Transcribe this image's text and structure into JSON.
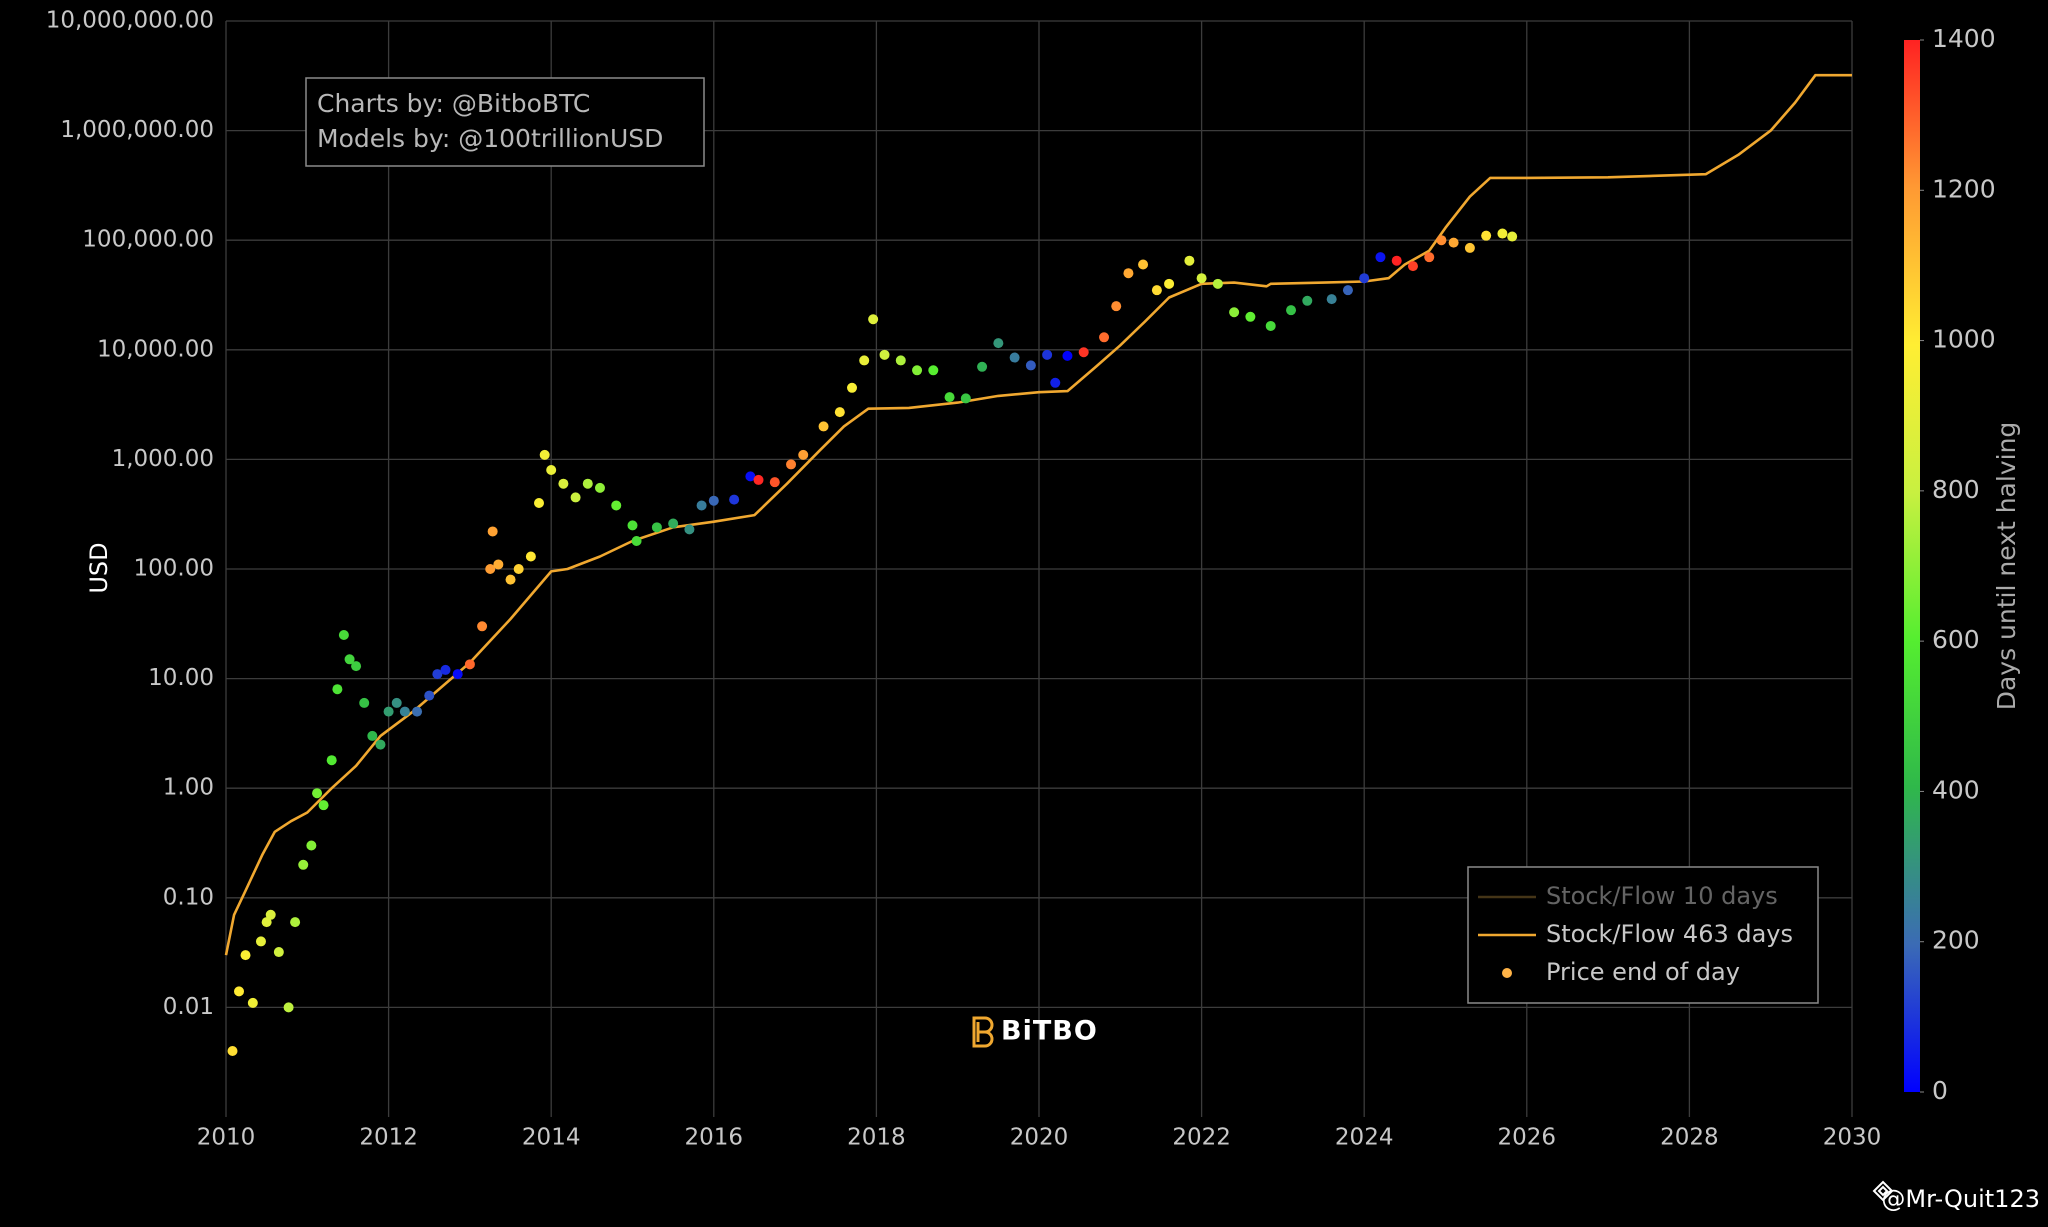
{
  "chart_data": {
    "type": "line",
    "y_label": "USD",
    "annotation": [
      "Charts by: @BitboBTC",
      "Models by: @100trillionUSD"
    ],
    "logo": "BiTBO",
    "watermark": "@Mr-Quit123",
    "xlim": [
      2010,
      2030
    ],
    "xticks": [
      2010,
      2012,
      2014,
      2016,
      2018,
      2020,
      2022,
      2024,
      2026,
      2028,
      2030
    ],
    "log_y": true,
    "ylim": [
      0.001,
      10000000
    ],
    "yticks": [
      0.01,
      {
        "value": 0.1,
        "label": "0.10"
      },
      {
        "value": 1,
        "label": "1.00"
      },
      {
        "value": 10,
        "label": "10.00"
      },
      {
        "value": 100,
        "label": "100.00"
      },
      {
        "value": 1000,
        "label": "1,000.00"
      },
      {
        "value": 10000,
        "label": "10,000.00"
      },
      {
        "value": 100000,
        "label": "100,000.00"
      },
      {
        "value": 1000000,
        "label": "1,000,000.00"
      },
      {
        "value": 10000000,
        "label": "10,000,000.00"
      }
    ],
    "grid": true,
    "legend": "bottom-right",
    "colorbar": {
      "title": "Days until next halving",
      "lim": [
        0,
        1400
      ],
      "ticks": [
        0,
        200,
        400,
        600,
        800,
        1000,
        1200,
        1400
      ],
      "colorscale": [
        [
          0,
          "#0000ff"
        ],
        [
          0.14,
          "#3b6bb5"
        ],
        [
          0.29,
          "#2fb84a"
        ],
        [
          0.43,
          "#55ee30"
        ],
        [
          0.57,
          "#c8f040"
        ],
        [
          0.71,
          "#ffee33"
        ],
        [
          0.86,
          "#ff9933"
        ],
        [
          1,
          "#ff2222"
        ]
      ]
    },
    "series": [
      {
        "name": "Stock/Flow 10 days",
        "type": "line",
        "color": "#8a6a2e",
        "visible": false
      },
      {
        "name": "Stock/Flow 463 days",
        "type": "line",
        "color": "#f0a830",
        "x": [
          2010.0,
          2010.1,
          2010.25,
          2010.45,
          2010.6,
          2010.8,
          2011.0,
          2011.3,
          2011.6,
          2011.9,
          2012.3,
          2012.7,
          2013.0,
          2013.5,
          2014.0,
          2014.2,
          2014.6,
          2015.0,
          2015.5,
          2016.0,
          2016.5,
          2016.9,
          2017.3,
          2017.6,
          2017.9,
          2018.4,
          2019.0,
          2019.5,
          2020.0,
          2020.35,
          2020.7,
          2021.0,
          2021.3,
          2021.6,
          2022.0,
          2022.4,
          2022.8,
          2022.85,
          2023.5,
          2024.0,
          2024.3,
          2024.5,
          2024.8,
          2025.0,
          2025.3,
          2025.55,
          2026.0,
          2027.0,
          2028.2,
          2028.6,
          2029.0,
          2029.3,
          2029.55,
          2030.0
        ],
        "values": [
          0.03,
          0.07,
          0.12,
          0.25,
          0.4,
          0.5,
          0.6,
          1.0,
          1.6,
          3,
          5,
          9,
          14,
          35,
          95,
          100,
          130,
          180,
          240,
          270,
          310,
          600,
          1200,
          2000,
          2900,
          2950,
          3300,
          3800,
          4100,
          4200,
          7000,
          11000,
          18000,
          30000,
          40000,
          41000,
          38000,
          40000,
          41000,
          42000,
          45000,
          60000,
          80000,
          130000,
          250000,
          370000,
          370000,
          375000,
          400000,
          600000,
          1000000,
          1800000,
          3200000,
          3200000
        ]
      },
      {
        "name": "Price end of day",
        "type": "scatter",
        "color": "#ffb347",
        "x": [
          2010.08,
          2010.16,
          2010.24,
          2010.33,
          2010.43,
          2010.5,
          2010.55,
          2010.65,
          2010.77,
          2010.85,
          2010.95,
          2011.05,
          2011.12,
          2011.2,
          2011.3,
          2011.37,
          2011.45,
          2011.52,
          2011.6,
          2011.7,
          2011.8,
          2011.9,
          2012.0,
          2012.1,
          2012.2,
          2012.35,
          2012.5,
          2012.6,
          2012.7,
          2012.85,
          2013.0,
          2013.15,
          2013.25,
          2013.28,
          2013.35,
          2013.5,
          2013.6,
          2013.75,
          2013.85,
          2013.92,
          2014.0,
          2014.15,
          2014.3,
          2014.45,
          2014.6,
          2014.8,
          2015.0,
          2015.05,
          2015.3,
          2015.5,
          2015.7,
          2015.85,
          2016.0,
          2016.25,
          2016.45,
          2016.55,
          2016.75,
          2016.95,
          2017.1,
          2017.35,
          2017.55,
          2017.7,
          2017.85,
          2017.96,
          2018.1,
          2018.3,
          2018.5,
          2018.7,
          2018.9,
          2019.1,
          2019.3,
          2019.5,
          2019.7,
          2019.9,
          2020.1,
          2020.2,
          2020.35,
          2020.55,
          2020.8,
          2020.95,
          2021.1,
          2021.28,
          2021.45,
          2021.6,
          2021.85,
          2022.0,
          2022.2,
          2022.4,
          2022.6,
          2022.85,
          2023.1,
          2023.3,
          2023.6,
          2023.8,
          2024.0,
          2024.2,
          2024.4,
          2024.6,
          2024.8,
          2024.95,
          2025.1,
          2025.3,
          2025.5,
          2025.7,
          2025.82
        ],
        "values": [
          0.004,
          0.014,
          0.03,
          0.011,
          0.04,
          0.06,
          0.07,
          0.032,
          0.01,
          0.06,
          0.2,
          0.3,
          0.9,
          0.7,
          1.8,
          8,
          25,
          15,
          13,
          6,
          3,
          2.5,
          5,
          6,
          5,
          5,
          7,
          11,
          12,
          11,
          13.5,
          30,
          100,
          220,
          110,
          80,
          100,
          130,
          400,
          1100,
          800,
          600,
          450,
          600,
          550,
          380,
          250,
          180,
          240,
          260,
          230,
          380,
          420,
          430,
          700,
          650,
          620,
          900,
          1100,
          2000,
          2700,
          4500,
          8000,
          19000,
          9000,
          8000,
          6500,
          6500,
          3700,
          3600,
          7000,
          11500,
          8500,
          7200,
          9000,
          5000,
          8800,
          9500,
          13000,
          25000,
          50000,
          60000,
          35000,
          40000,
          65000,
          45000,
          40000,
          22000,
          20000,
          16500,
          23000,
          28000,
          29000,
          35000,
          45000,
          70000,
          65000,
          58000,
          70000,
          100000,
          95000,
          85000,
          110000,
          115000,
          108000
        ],
        "days": [
          1033,
          1004,
          975,
          942,
          905,
          880,
          861,
          825,
          781,
          752,
          715,
          679,
          653,
          624,
          588,
          562,
          533,
          507,
          478,
          442,
          405,
          369,
          332,
          296,
          259,
          204,
          150,
          113,
          77,
          22,
          1285,
          1230,
          1194,
          1183,
          1157,
          1102,
          1066,
          1011,
          975,
          949,
          920,
          865,
          810,
          756,
          701,
          628,
          555,
          537,
          445,
          372,
          299,
          245,
          190,
          99,
          26,
          1391,
          1318,
          1245,
          1190,
          1099,
          1026,
          971,
          916,
          876,
          825,
          752,
          679,
          606,
          533,
          460,
          387,
          314,
          241,
          168,
          95,
          58,
          4,
          1369,
          1278,
          1223,
          1168,
          1102,
          1040,
          986,
          894,
          840,
          767,
          694,
          621,
          529,
          438,
          365,
          256,
          183,
          110,
          37,
          1424,
          1351,
          1278,
          1223,
          1168,
          1095,
          1022,
          949,
          905
        ]
      }
    ]
  }
}
